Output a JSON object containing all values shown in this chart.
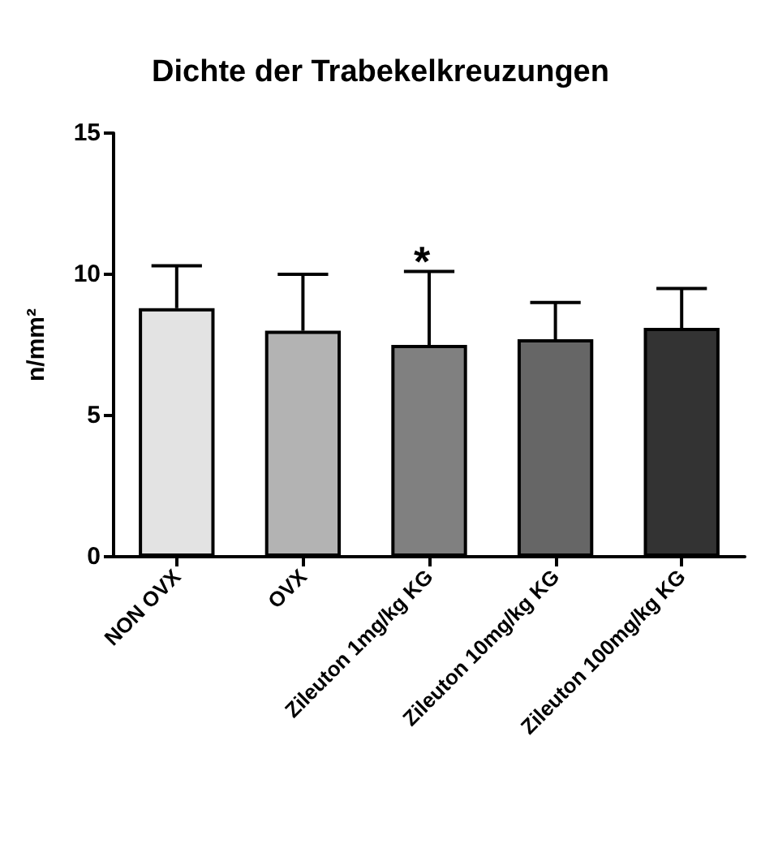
{
  "chart_data": {
    "type": "bar",
    "title": "Dichte der Trabekelkreuzungen",
    "ylabel": "n/mm²",
    "categories": [
      "NON OVX",
      "OVX",
      "Zileuton 1mg/kg KG",
      "Zileuton 10mg/kg KG",
      "Zileuton 100mg/kg KG"
    ],
    "values": [
      8.8,
      8.0,
      7.5,
      7.7,
      8.1
    ],
    "errors": [
      1.5,
      2.0,
      2.6,
      1.3,
      1.4
    ],
    "colors": [
      "#e3e3e3",
      "#b3b3b3",
      "#808080",
      "#666666",
      "#333333"
    ],
    "ylim": [
      0,
      15
    ],
    "yticks": [
      0,
      5,
      10,
      15
    ],
    "grid": false,
    "annotations": [
      "*"
    ]
  }
}
